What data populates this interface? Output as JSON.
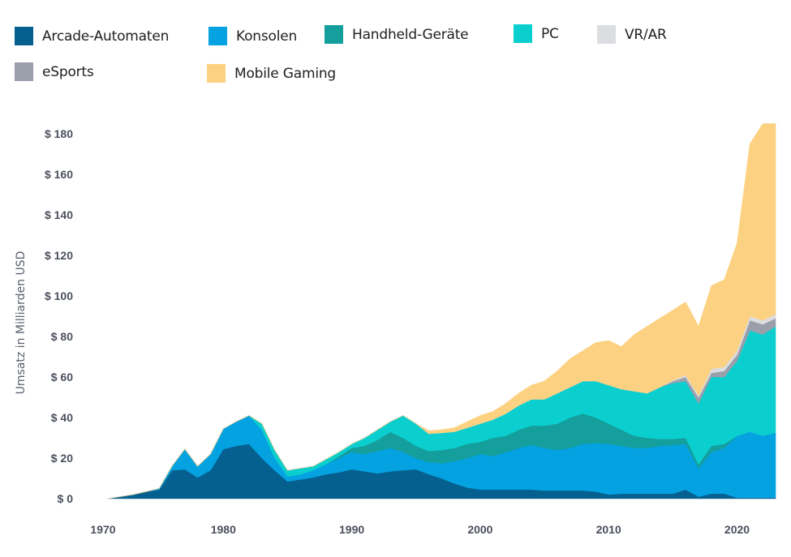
{
  "chart_data": {
    "type": "area",
    "stacked": true,
    "title": "",
    "xlabel": "",
    "ylabel": "Umsatz in Milliarden USD",
    "xlim": [
      1970,
      2023
    ],
    "ylim": [
      0,
      185
    ],
    "grid": false,
    "legend_position": "top",
    "x_ticks": [
      {
        "value": 1970,
        "label": "1970"
      },
      {
        "value": 1980,
        "label": "1980"
      },
      {
        "value": 1990,
        "label": "1990"
      },
      {
        "value": 2000,
        "label": "2000"
      },
      {
        "value": 2010,
        "label": "2010"
      },
      {
        "value": 2020,
        "label": "2020"
      }
    ],
    "y_ticks": [
      {
        "value": 0,
        "label": "$ 0"
      },
      {
        "value": 20,
        "label": "$ 20"
      },
      {
        "value": 40,
        "label": "$ 40"
      },
      {
        "value": 60,
        "label": "$ 60"
      },
      {
        "value": 80,
        "label": "$ 80"
      },
      {
        "value": 100,
        "label": "$ 100"
      },
      {
        "value": 120,
        "label": "$ 120"
      },
      {
        "value": 140,
        "label": "$ 140"
      },
      {
        "value": 160,
        "label": "$ 160"
      },
      {
        "value": 180,
        "label": "$ 180"
      }
    ],
    "x": [
      1971,
      1972,
      1973,
      1974,
      1975,
      1976,
      1977,
      1978,
      1979,
      1980,
      1981,
      1982,
      1983,
      1984,
      1985,
      1986,
      1987,
      1988,
      1989,
      1990,
      1991,
      1992,
      1993,
      1994,
      1995,
      1996,
      1997,
      1998,
      1999,
      2000,
      2001,
      2002,
      2003,
      2004,
      2005,
      2006,
      2007,
      2008,
      2009,
      2010,
      2011,
      2012,
      2013,
      2014,
      2015,
      2016,
      2017,
      2018,
      2019,
      2020,
      2021,
      2022,
      2023
    ],
    "series": [
      {
        "name": "Arcade-Automaten",
        "color": "#05608f",
        "values": [
          0,
          1,
          2,
          3.5,
          4.5,
          14,
          14.5,
          10.5,
          14,
          24.5,
          26,
          27,
          20,
          14,
          8.5,
          9.5,
          10.5,
          12,
          13,
          14.5,
          13.5,
          12.5,
          13.5,
          14,
          14.5,
          12,
          10,
          7.5,
          5.5,
          4.5,
          4.5,
          4.5,
          4.5,
          4.5,
          4,
          4,
          4,
          4,
          3.5,
          2,
          2.5,
          2.5,
          2.5,
          2.5,
          2.5,
          4.5,
          1,
          2.5,
          2.5,
          0.5,
          0.5,
          0.5,
          0.5
        ]
      },
      {
        "name": "Konsolen",
        "color": "#05a2e1",
        "values": [
          0,
          0,
          0,
          0,
          0.5,
          2,
          10,
          5.5,
          8,
          10,
          12,
          14,
          14,
          6,
          2.5,
          2.5,
          3.5,
          5,
          7,
          8.5,
          8.5,
          11,
          11.5,
          9,
          5.5,
          6,
          7.5,
          11,
          14.5,
          17.5,
          16.5,
          18.5,
          20.5,
          22,
          21,
          20,
          21,
          23,
          24,
          25,
          23.5,
          22.5,
          22.5,
          23.5,
          24,
          22.5,
          14,
          20.5,
          22.5,
          30.5,
          32.5,
          30.5,
          32
        ]
      },
      {
        "name": "Handheld-Geräte",
        "color": "#149e9c",
        "values": [
          0,
          0,
          0,
          0,
          0,
          0,
          0,
          0,
          0,
          0,
          0,
          0,
          0,
          0,
          0,
          0,
          0,
          0,
          1,
          2,
          4,
          5.5,
          8,
          7,
          6,
          5.5,
          6.5,
          6.5,
          7,
          6,
          9,
          8,
          9,
          9.5,
          11,
          13,
          15,
          15,
          12.5,
          10,
          8,
          6,
          5,
          3.5,
          3,
          3,
          2,
          3,
          2,
          0,
          0,
          0,
          0
        ]
      },
      {
        "name": "PC",
        "color": "#0bcfcf",
        "values": [
          0,
          0,
          0,
          0,
          0,
          0,
          0,
          0,
          0,
          0,
          0,
          0,
          3,
          4,
          3,
          3,
          2,
          2.5,
          2,
          2,
          4,
          5,
          5,
          11,
          11,
          8.5,
          8.5,
          8,
          8,
          9,
          9,
          11,
          12,
          13,
          13,
          15,
          15,
          16,
          18,
          19,
          20,
          22,
          22,
          25.5,
          27.5,
          28,
          30,
          34,
          33,
          37,
          50,
          50,
          52.5
        ]
      },
      {
        "name": "eSports",
        "color": "#9b9fab",
        "values": [
          0,
          0,
          0,
          0,
          0,
          0,
          0,
          0,
          0,
          0,
          0,
          0,
          0,
          0,
          0,
          0,
          0,
          0,
          0,
          0,
          0,
          0,
          0,
          0,
          0,
          0,
          0,
          0,
          0,
          0,
          0,
          0,
          0,
          0,
          0,
          0,
          0,
          0,
          0,
          0,
          0,
          0,
          0,
          0,
          1,
          2,
          3,
          2,
          3,
          3,
          5,
          5,
          4
        ]
      },
      {
        "name": "VR/AR",
        "color": "#dcdde0",
        "values": [
          0,
          0,
          0,
          0,
          0,
          0,
          0,
          0,
          0,
          0,
          0,
          0,
          0,
          0,
          0,
          0,
          0,
          0,
          0,
          0,
          0,
          0,
          0,
          0,
          0,
          0,
          0,
          0,
          0,
          0,
          0,
          0,
          0,
          0,
          0,
          0,
          0,
          0,
          0,
          0,
          0,
          0,
          0,
          0,
          0.5,
          1,
          1,
          2,
          2,
          2,
          2,
          2,
          2
        ]
      },
      {
        "name": "Mobile Gaming",
        "color": "#fdd182",
        "values": [
          0,
          0,
          0,
          0,
          0,
          0,
          0,
          0,
          0,
          0,
          0,
          0,
          0,
          0,
          0,
          0,
          0,
          0,
          0,
          0,
          0,
          0,
          0,
          0,
          0,
          1.5,
          1.5,
          2,
          3,
          4,
          4,
          5,
          6,
          7,
          9,
          11,
          14,
          15,
          19,
          22,
          21,
          28,
          33,
          34,
          34.5,
          36,
          34,
          41,
          43,
          53,
          85,
          97,
          94
        ]
      }
    ]
  }
}
